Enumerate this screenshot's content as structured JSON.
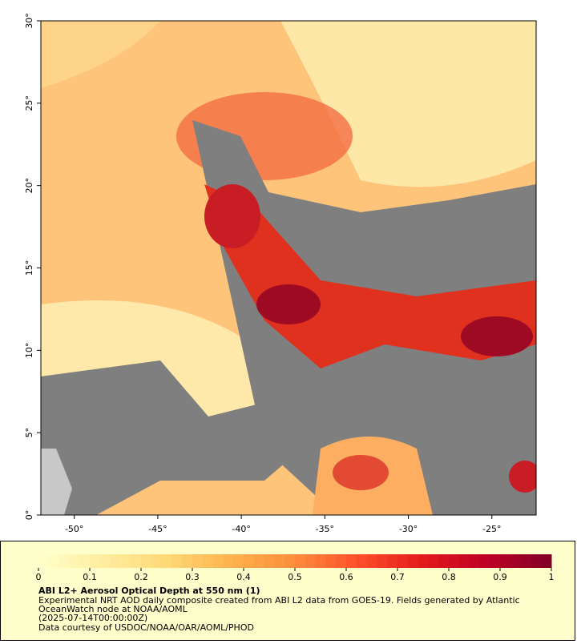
{
  "chart_data": {
    "type": "map",
    "xlim": [
      -52,
      -22.35
    ],
    "ylim": [
      0,
      30
    ],
    "xticks": [
      {
        "value": -50,
        "label": "-50°"
      },
      {
        "value": -45,
        "label": "-45°"
      },
      {
        "value": -40,
        "label": "-40°"
      },
      {
        "value": -35,
        "label": "-35°"
      },
      {
        "value": -30,
        "label": "-30°"
      },
      {
        "value": -25,
        "label": "-25°"
      }
    ],
    "yticks": [
      {
        "value": 0,
        "label": "0°"
      },
      {
        "value": 5,
        "label": "5°"
      },
      {
        "value": 10,
        "label": "10°"
      },
      {
        "value": 15,
        "label": "15°"
      },
      {
        "value": 20,
        "label": "20°"
      },
      {
        "value": 25,
        "label": "25°"
      },
      {
        "value": 30,
        "label": "30°"
      }
    ],
    "colorbar": {
      "range": [
        0,
        1
      ],
      "ticks": [
        0,
        0.1,
        0.2,
        0.3,
        0.4,
        0.5,
        0.6,
        0.7,
        0.8,
        0.9,
        1
      ],
      "colors": [
        "#ffffcc",
        "#ffeda0",
        "#fed976",
        "#feb24c",
        "#fd8d3c",
        "#fc4e2a",
        "#e31a1c",
        "#bd0026",
        "#800026"
      ]
    },
    "title": "ABI L2+ Aerosol Optical Depth at 550 nm (1)",
    "notes": [
      "Experimental NRT AOD daily composite created from ABI L2 data from GOES-19. Fields generated by Atlantic",
      "OceanWatch node at NOAA/AOML",
      "(2025-07-14T00:00:00Z)",
      "Data courtesy of USDOC/NOAA/OAR/AOML/PHOD"
    ]
  }
}
